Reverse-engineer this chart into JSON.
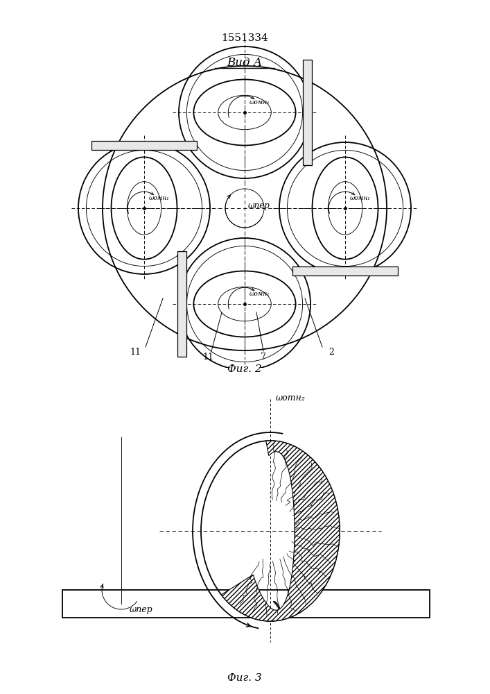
{
  "title": "1551334",
  "fig2_label": "Вид A",
  "fig2_caption": "Фиг. 2",
  "fig3_caption": "Фиг. 3",
  "bg_color": "#ffffff",
  "line_color": "#000000",
  "omega_omn1": "ωомн₁",
  "omega_per": "ωпер",
  "omega_otnh2": "ωотн₂"
}
